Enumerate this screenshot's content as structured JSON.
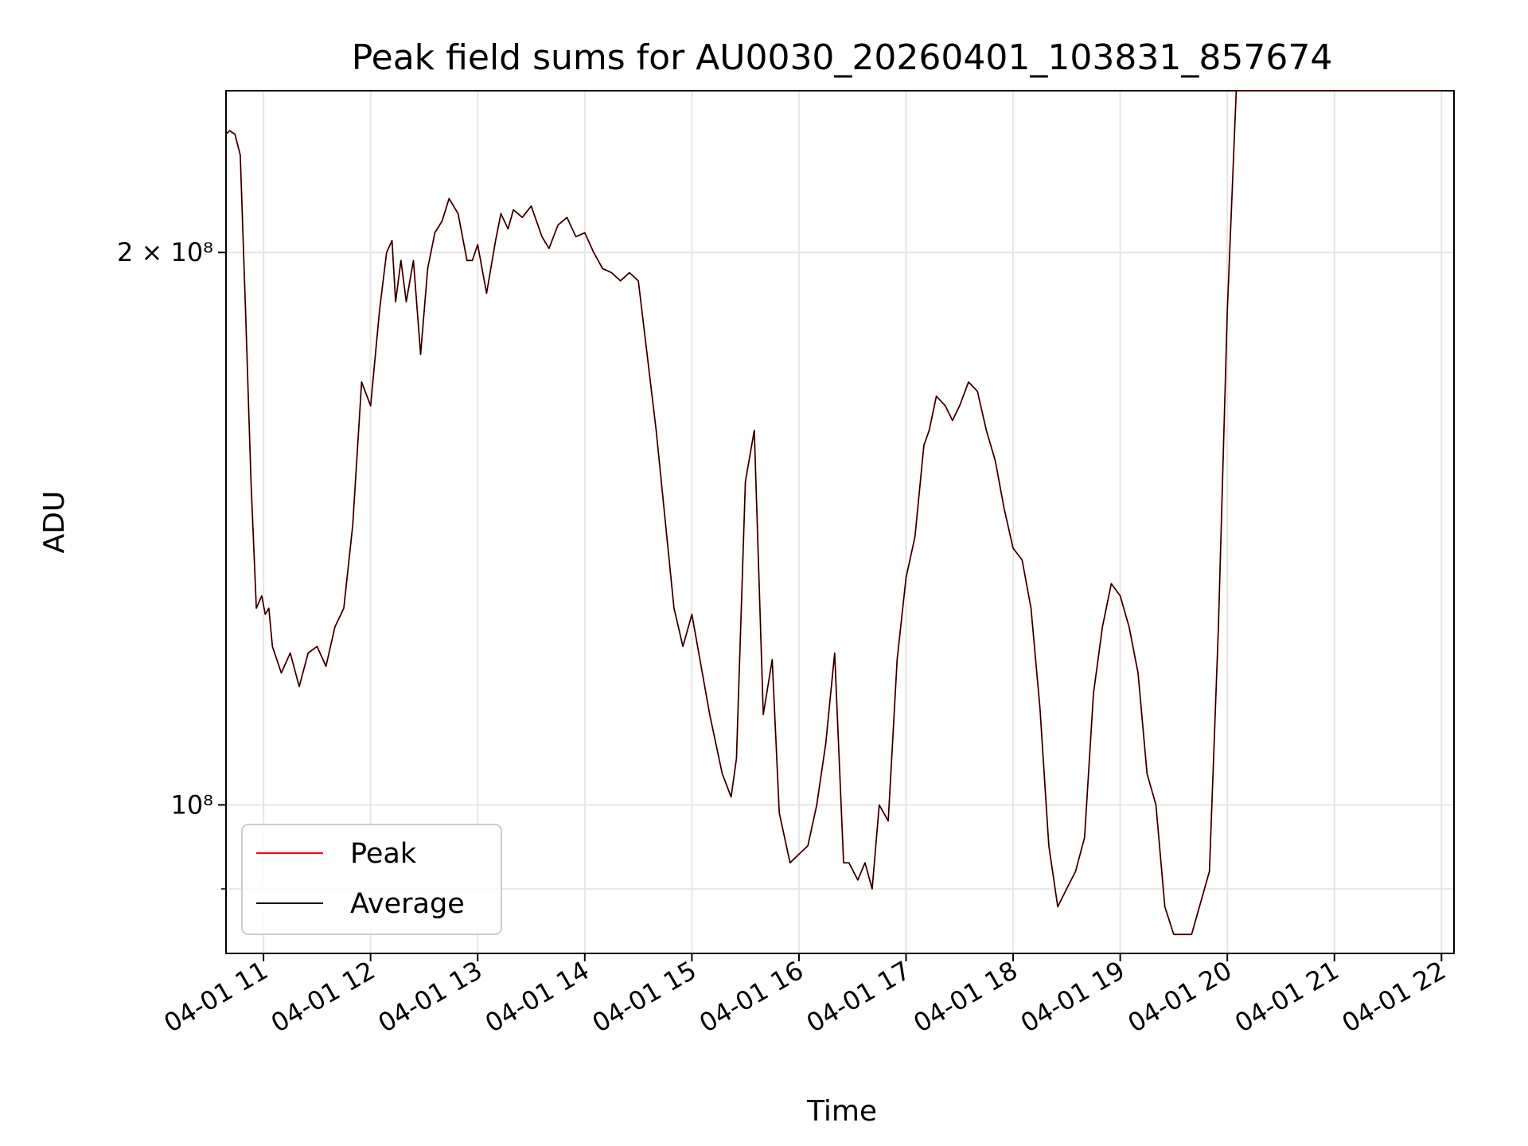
{
  "chart_data": {
    "type": "line",
    "title": "Peak field sums for AU0030_20260401_103831_857674",
    "xlabel": "Time",
    "ylabel": "ADU",
    "yscale": "log",
    "xlim": [
      "04-01 10:39",
      "04-01 22:07"
    ],
    "ylim": [
      83000000,
      245000000
    ],
    "grid": true,
    "legend_position": "lower-left",
    "x_ticks": [
      "04-01 11",
      "04-01 12",
      "04-01 13",
      "04-01 14",
      "04-01 15",
      "04-01 16",
      "04-01 17",
      "04-01 18",
      "04-01 19",
      "04-01 20",
      "04-01 21",
      "04-01 22"
    ],
    "y_tick_labels": [
      {
        "value": 200000000,
        "label": "2 × 10⁸"
      },
      {
        "value": 100000000,
        "label": "10⁸"
      }
    ],
    "x": [
      "10:39",
      "10:41",
      "10:44",
      "10:47",
      "10:50",
      "10:53",
      "10:56",
      "10:59",
      "11:01",
      "11:03",
      "11:05",
      "11:10",
      "11:15",
      "11:20",
      "11:25",
      "11:30",
      "11:35",
      "11:40",
      "11:45",
      "11:50",
      "11:55",
      "12:00",
      "12:05",
      "12:09",
      "12:12",
      "12:14",
      "12:17",
      "12:20",
      "12:24",
      "12:28",
      "12:32",
      "12:36",
      "12:40",
      "12:44",
      "12:49",
      "12:54",
      "12:57",
      "13:00",
      "13:05",
      "13:10",
      "13:13",
      "13:17",
      "13:20",
      "13:25",
      "13:30",
      "13:36",
      "13:40",
      "13:45",
      "13:50",
      "13:55",
      "14:00",
      "14:05",
      "14:10",
      "14:15",
      "14:20",
      "14:25",
      "14:30",
      "14:40",
      "14:50",
      "14:55",
      "15:00",
      "15:10",
      "15:17",
      "15:22",
      "15:25",
      "15:30",
      "15:35",
      "15:40",
      "15:45",
      "15:49",
      "15:55",
      "16:00",
      "16:05",
      "16:10",
      "16:15",
      "16:20",
      "16:25",
      "16:28",
      "16:33",
      "16:37",
      "16:41",
      "16:45",
      "16:50",
      "16:55",
      "17:00",
      "17:05",
      "17:10",
      "17:13",
      "17:17",
      "17:22",
      "17:26",
      "17:30",
      "17:35",
      "17:40",
      "17:45",
      "17:50",
      "17:55",
      "18:00",
      "18:05",
      "18:10",
      "18:15",
      "18:20",
      "18:25",
      "18:30",
      "18:35",
      "18:40",
      "18:45",
      "18:50",
      "18:55",
      "19:00",
      "19:05",
      "19:10",
      "19:15",
      "19:20",
      "19:25",
      "19:30",
      "19:40",
      "19:50",
      "19:55",
      "20:00",
      "20:05",
      "20:10",
      "20:15",
      "20:20",
      "20:25",
      "20:30",
      "20:35",
      "20:40",
      "20:45",
      "20:50",
      "20:55",
      "21:00",
      "21:05",
      "21:10",
      "21:15",
      "21:20",
      "21:25",
      "21:30",
      "21:35",
      "21:40",
      "21:45",
      "21:50",
      "21:55",
      "22:00"
    ],
    "series": [
      {
        "name": "Peak",
        "color": "#ff0000",
        "values": [
          232000000,
          233000000,
          232000000,
          226000000,
          185000000,
          150000000,
          128000000,
          130000000,
          127000000,
          128000000,
          122000000,
          118000000,
          121000000,
          116000000,
          121000000,
          122000000,
          119000000,
          125000000,
          128000000,
          142000000,
          170000000,
          165000000,
          186000000,
          200000000,
          203000000,
          188000000,
          198000000,
          188000000,
          198000000,
          176000000,
          196000000,
          205000000,
          208000000,
          214000000,
          210000000,
          198000000,
          198000000,
          202000000,
          190000000,
          203000000,
          210000000,
          206000000,
          211000000,
          209000000,
          212000000,
          204000000,
          201000000,
          207000000,
          209000000,
          204000000,
          205000000,
          200000000,
          196000000,
          195000000,
          193000000,
          195000000,
          193000000,
          160000000,
          128000000,
          122000000,
          127000000,
          112000000,
          104000000,
          101000000,
          106000000,
          150000000,
          160000000,
          112000000,
          120000000,
          99000000,
          93000000,
          94000000,
          95000000,
          100000000,
          108000000,
          121000000,
          93000000,
          93000000,
          91000000,
          93000000,
          90000000,
          100000000,
          98000000,
          120000000,
          133000000,
          140000000,
          157000000,
          160000000,
          167000000,
          165000000,
          162000000,
          165000000,
          170000000,
          168000000,
          160000000,
          154000000,
          145000000,
          138000000,
          136000000,
          128000000,
          113000000,
          95000000,
          88000000,
          90000000,
          92000000,
          96000000,
          115000000,
          125000000,
          132000000,
          130000000,
          125000000,
          118000000,
          104000000,
          100000000,
          88000000,
          85000000,
          85000000,
          92000000,
          125000000,
          186000000,
          245000000,
          245000000,
          245000000,
          245000000,
          245000000,
          245000000,
          245000000,
          245000000,
          245000000,
          245000000,
          245000000,
          245000000,
          245000000,
          245000000,
          245000000,
          245000000,
          245000000,
          245000000,
          245000000,
          245000000,
          245000000,
          245000000,
          245000000,
          245000000
        ]
      },
      {
        "name": "Average",
        "color": "#000000",
        "values": [
          232000000,
          233000000,
          232000000,
          226000000,
          185000000,
          150000000,
          128000000,
          130000000,
          127000000,
          128000000,
          122000000,
          118000000,
          121000000,
          116000000,
          121000000,
          122000000,
          119000000,
          125000000,
          128000000,
          142000000,
          170000000,
          165000000,
          186000000,
          200000000,
          203000000,
          188000000,
          198000000,
          188000000,
          198000000,
          176000000,
          196000000,
          205000000,
          208000000,
          214000000,
          210000000,
          198000000,
          198000000,
          202000000,
          190000000,
          203000000,
          210000000,
          206000000,
          211000000,
          209000000,
          212000000,
          204000000,
          201000000,
          207000000,
          209000000,
          204000000,
          205000000,
          200000000,
          196000000,
          195000000,
          193000000,
          195000000,
          193000000,
          160000000,
          128000000,
          122000000,
          127000000,
          112000000,
          104000000,
          101000000,
          106000000,
          150000000,
          160000000,
          112000000,
          120000000,
          99000000,
          93000000,
          94000000,
          95000000,
          100000000,
          108000000,
          121000000,
          93000000,
          93000000,
          91000000,
          93000000,
          90000000,
          100000000,
          98000000,
          120000000,
          133000000,
          140000000,
          157000000,
          160000000,
          167000000,
          165000000,
          162000000,
          165000000,
          170000000,
          168000000,
          160000000,
          154000000,
          145000000,
          138000000,
          136000000,
          128000000,
          113000000,
          95000000,
          88000000,
          90000000,
          92000000,
          96000000,
          115000000,
          125000000,
          132000000,
          130000000,
          125000000,
          118000000,
          104000000,
          100000000,
          88000000,
          85000000,
          85000000,
          92000000,
          125000000,
          186000000,
          245000000,
          245000000,
          245000000,
          245000000,
          245000000,
          245000000,
          245000000,
          245000000,
          245000000,
          245000000,
          245000000,
          245000000,
          245000000,
          245000000,
          245000000,
          245000000,
          245000000,
          245000000,
          245000000,
          245000000,
          245000000,
          245000000,
          245000000,
          245000000
        ]
      }
    ]
  }
}
